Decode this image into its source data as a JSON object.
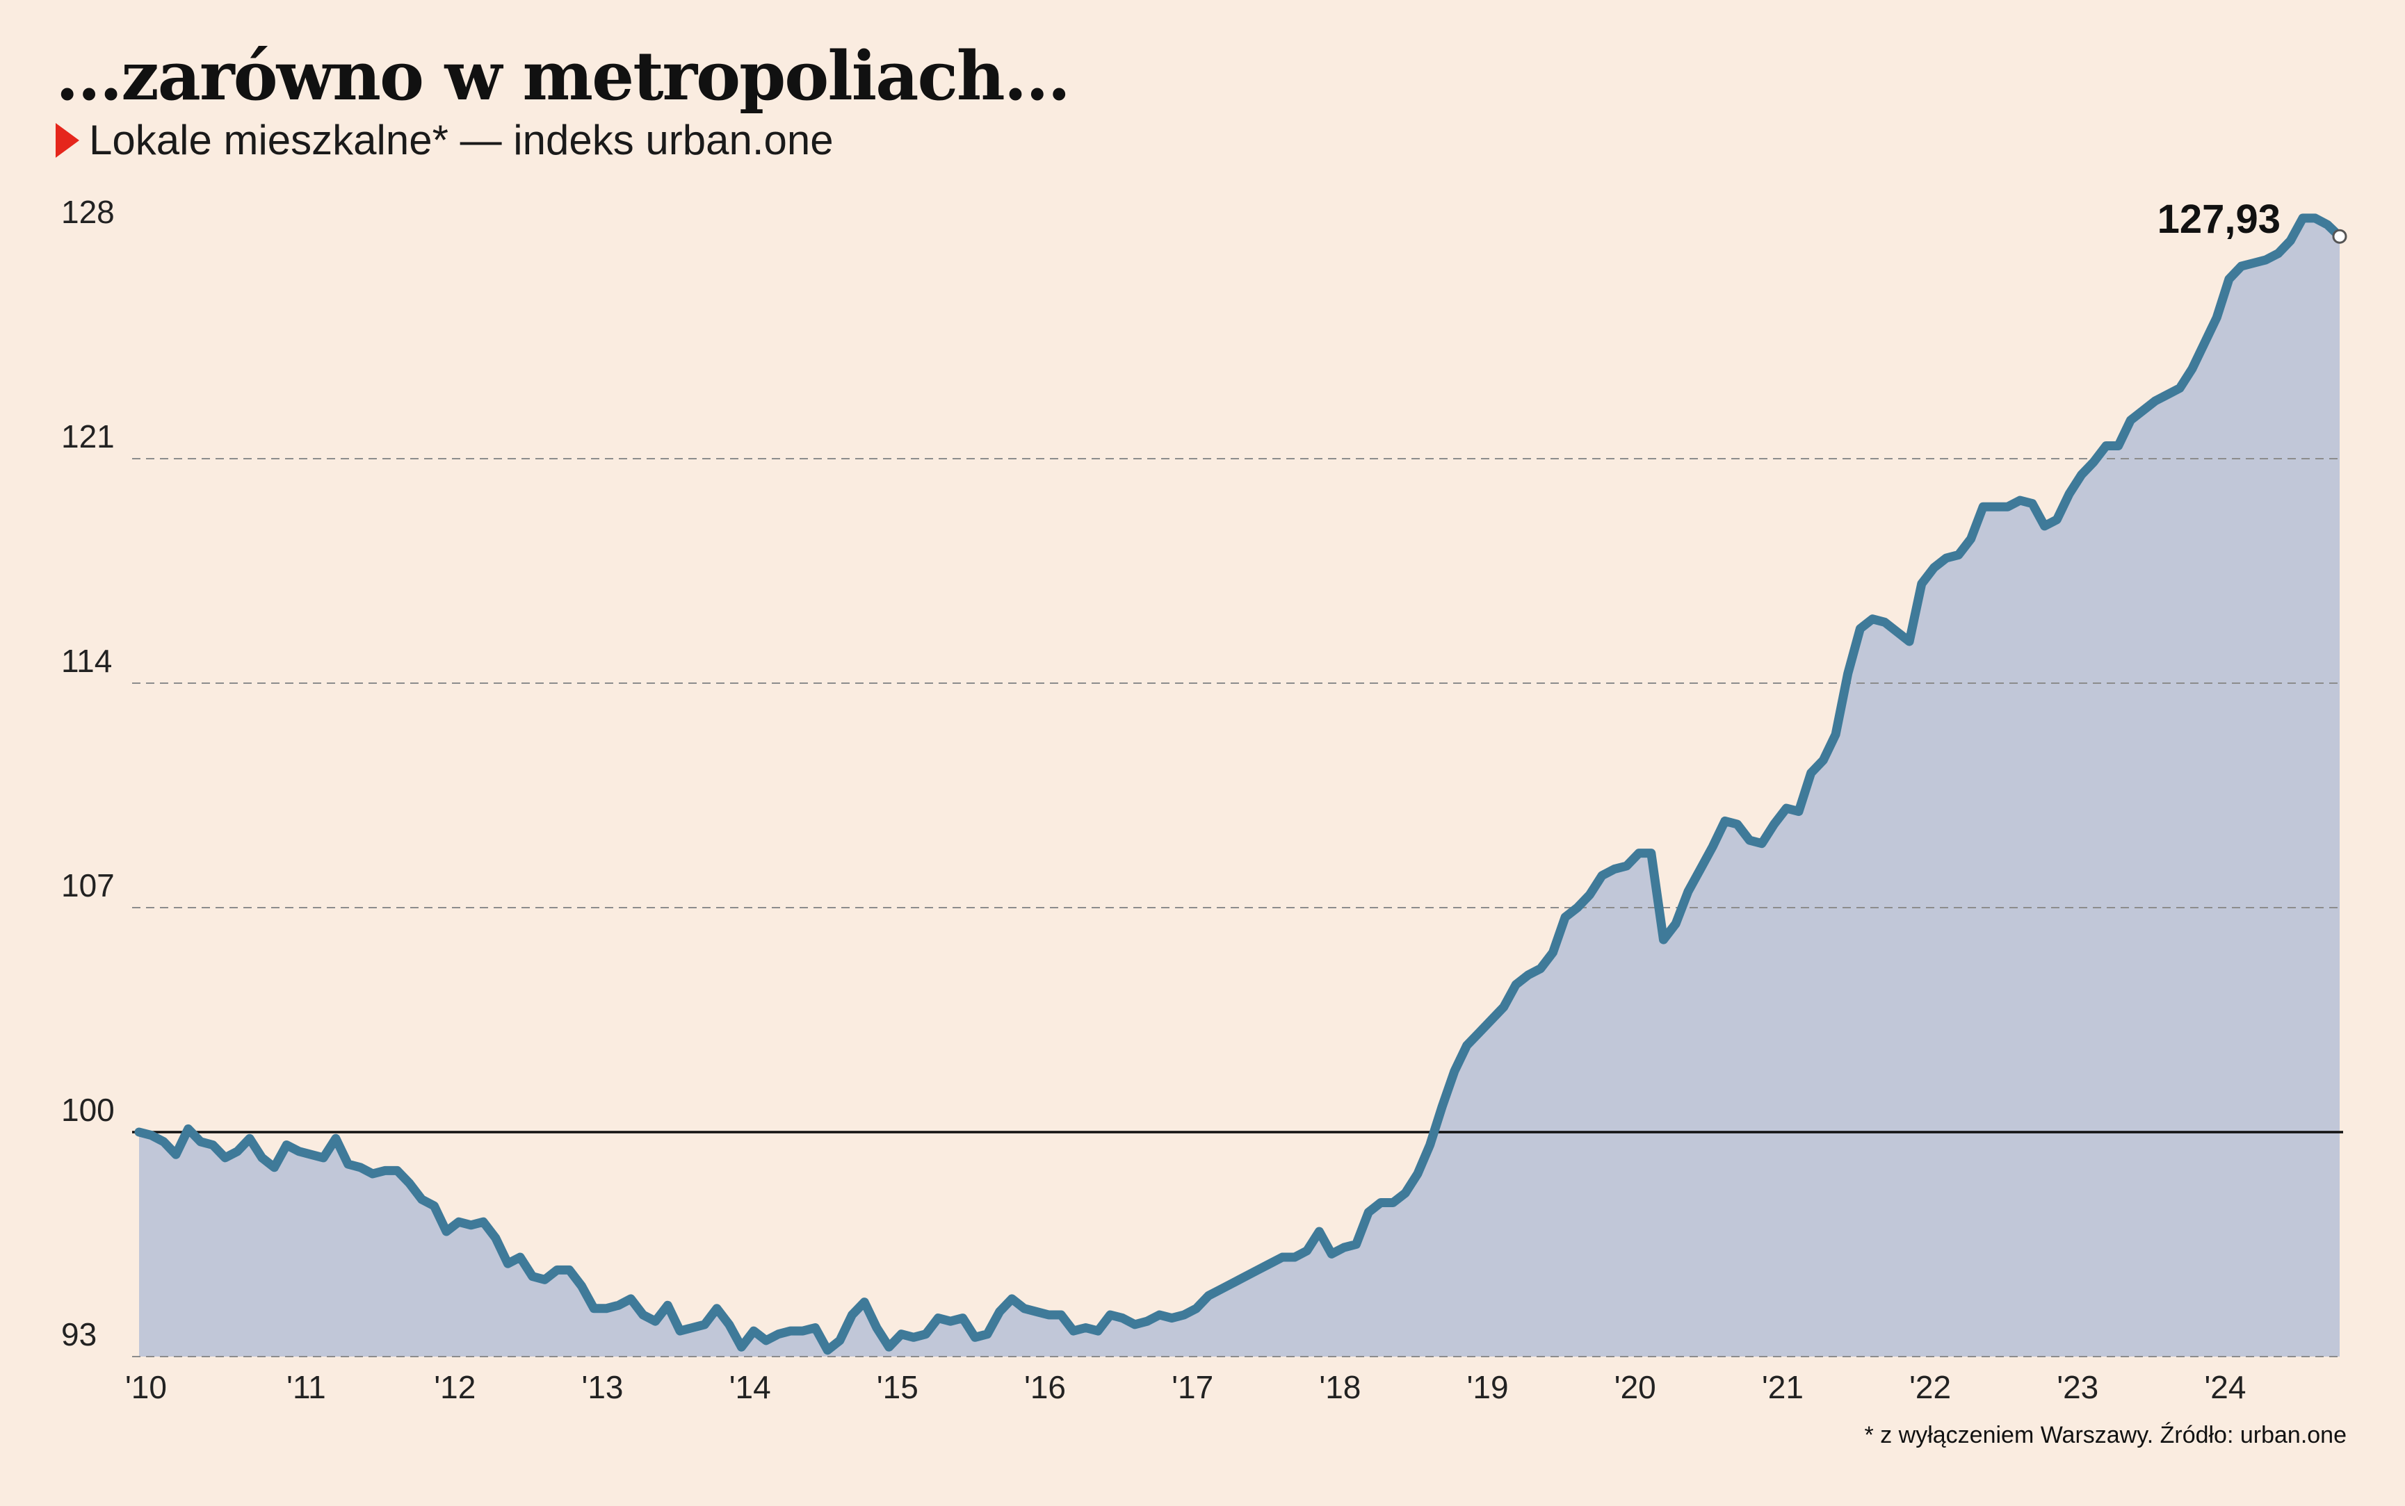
{
  "header": {
    "title": "...zarówno w metropoliach...",
    "subtitle": "Lokale mieszkalne* — indeks urban.one"
  },
  "footnote": "* z wyłączeniem Warszawy. Źródło: urban.one",
  "colors": {
    "background": "#faece0",
    "line": "#3f7a99",
    "area": "#c1c7d8",
    "marker": "#e5261c"
  },
  "chart_data": {
    "type": "area",
    "ylim": [
      93,
      128
    ],
    "yticks": [
      93,
      100,
      107,
      114,
      121,
      128
    ],
    "reference_line": 100,
    "grid": "dashed horizontal",
    "x_ticks": [
      "'10",
      "'11",
      "'12",
      "'13",
      "'14",
      "'15",
      "'16",
      "'17",
      "'18",
      "'19",
      "'20",
      "'21",
      "'22",
      "'23",
      "'24"
    ],
    "x_start_year": 2010,
    "end_label": "127,93",
    "values": [
      100.0,
      99.9,
      99.7,
      99.3,
      100.1,
      99.7,
      99.6,
      99.2,
      99.4,
      99.8,
      99.2,
      98.9,
      99.6,
      99.4,
      99.3,
      99.2,
      99.8,
      99.0,
      98.9,
      98.7,
      98.8,
      98.8,
      98.4,
      97.9,
      97.7,
      96.9,
      97.2,
      97.1,
      97.2,
      96.7,
      95.9,
      96.1,
      95.5,
      95.4,
      95.7,
      95.7,
      95.2,
      94.5,
      94.5,
      94.6,
      94.8,
      94.3,
      94.1,
      94.6,
      93.8,
      93.9,
      94.0,
      94.5,
      94.0,
      93.3,
      93.8,
      93.5,
      93.7,
      93.8,
      93.8,
      93.9,
      93.2,
      93.5,
      94.3,
      94.7,
      93.9,
      93.3,
      93.7,
      93.6,
      93.7,
      94.2,
      94.1,
      94.2,
      93.6,
      93.7,
      94.4,
      94.8,
      94.5,
      94.4,
      94.3,
      94.3,
      93.8,
      93.9,
      93.8,
      94.3,
      94.2,
      94.0,
      94.1,
      94.3,
      94.2,
      94.3,
      94.5,
      94.9,
      95.1,
      95.3,
      95.5,
      95.7,
      95.9,
      96.1,
      96.1,
      96.3,
      96.9,
      96.2,
      96.4,
      96.5,
      97.5,
      97.8,
      97.8,
      98.1,
      98.7,
      99.6,
      100.8,
      101.9,
      102.7,
      103.1,
      103.5,
      103.9,
      104.6,
      104.9,
      105.1,
      105.6,
      106.7,
      107.0,
      107.4,
      108.0,
      108.2,
      108.3,
      108.7,
      108.7,
      106.0,
      106.5,
      107.5,
      108.2,
      108.9,
      109.7,
      109.6,
      109.1,
      109.0,
      109.6,
      110.1,
      110.0,
      111.2,
      111.6,
      112.4,
      114.3,
      115.7,
      116.0,
      115.9,
      115.6,
      115.3,
      117.1,
      117.6,
      117.9,
      118.0,
      118.5,
      119.5,
      119.5,
      119.5,
      119.7,
      119.6,
      118.9,
      119.1,
      119.9,
      120.5,
      120.9,
      121.4,
      121.4,
      122.2,
      122.5,
      122.8,
      123.0,
      123.2,
      123.8,
      124.6,
      125.4,
      126.6,
      127.0,
      127.1,
      127.2,
      127.4,
      127.8,
      128.5,
      128.5,
      128.3,
      127.93
    ]
  }
}
